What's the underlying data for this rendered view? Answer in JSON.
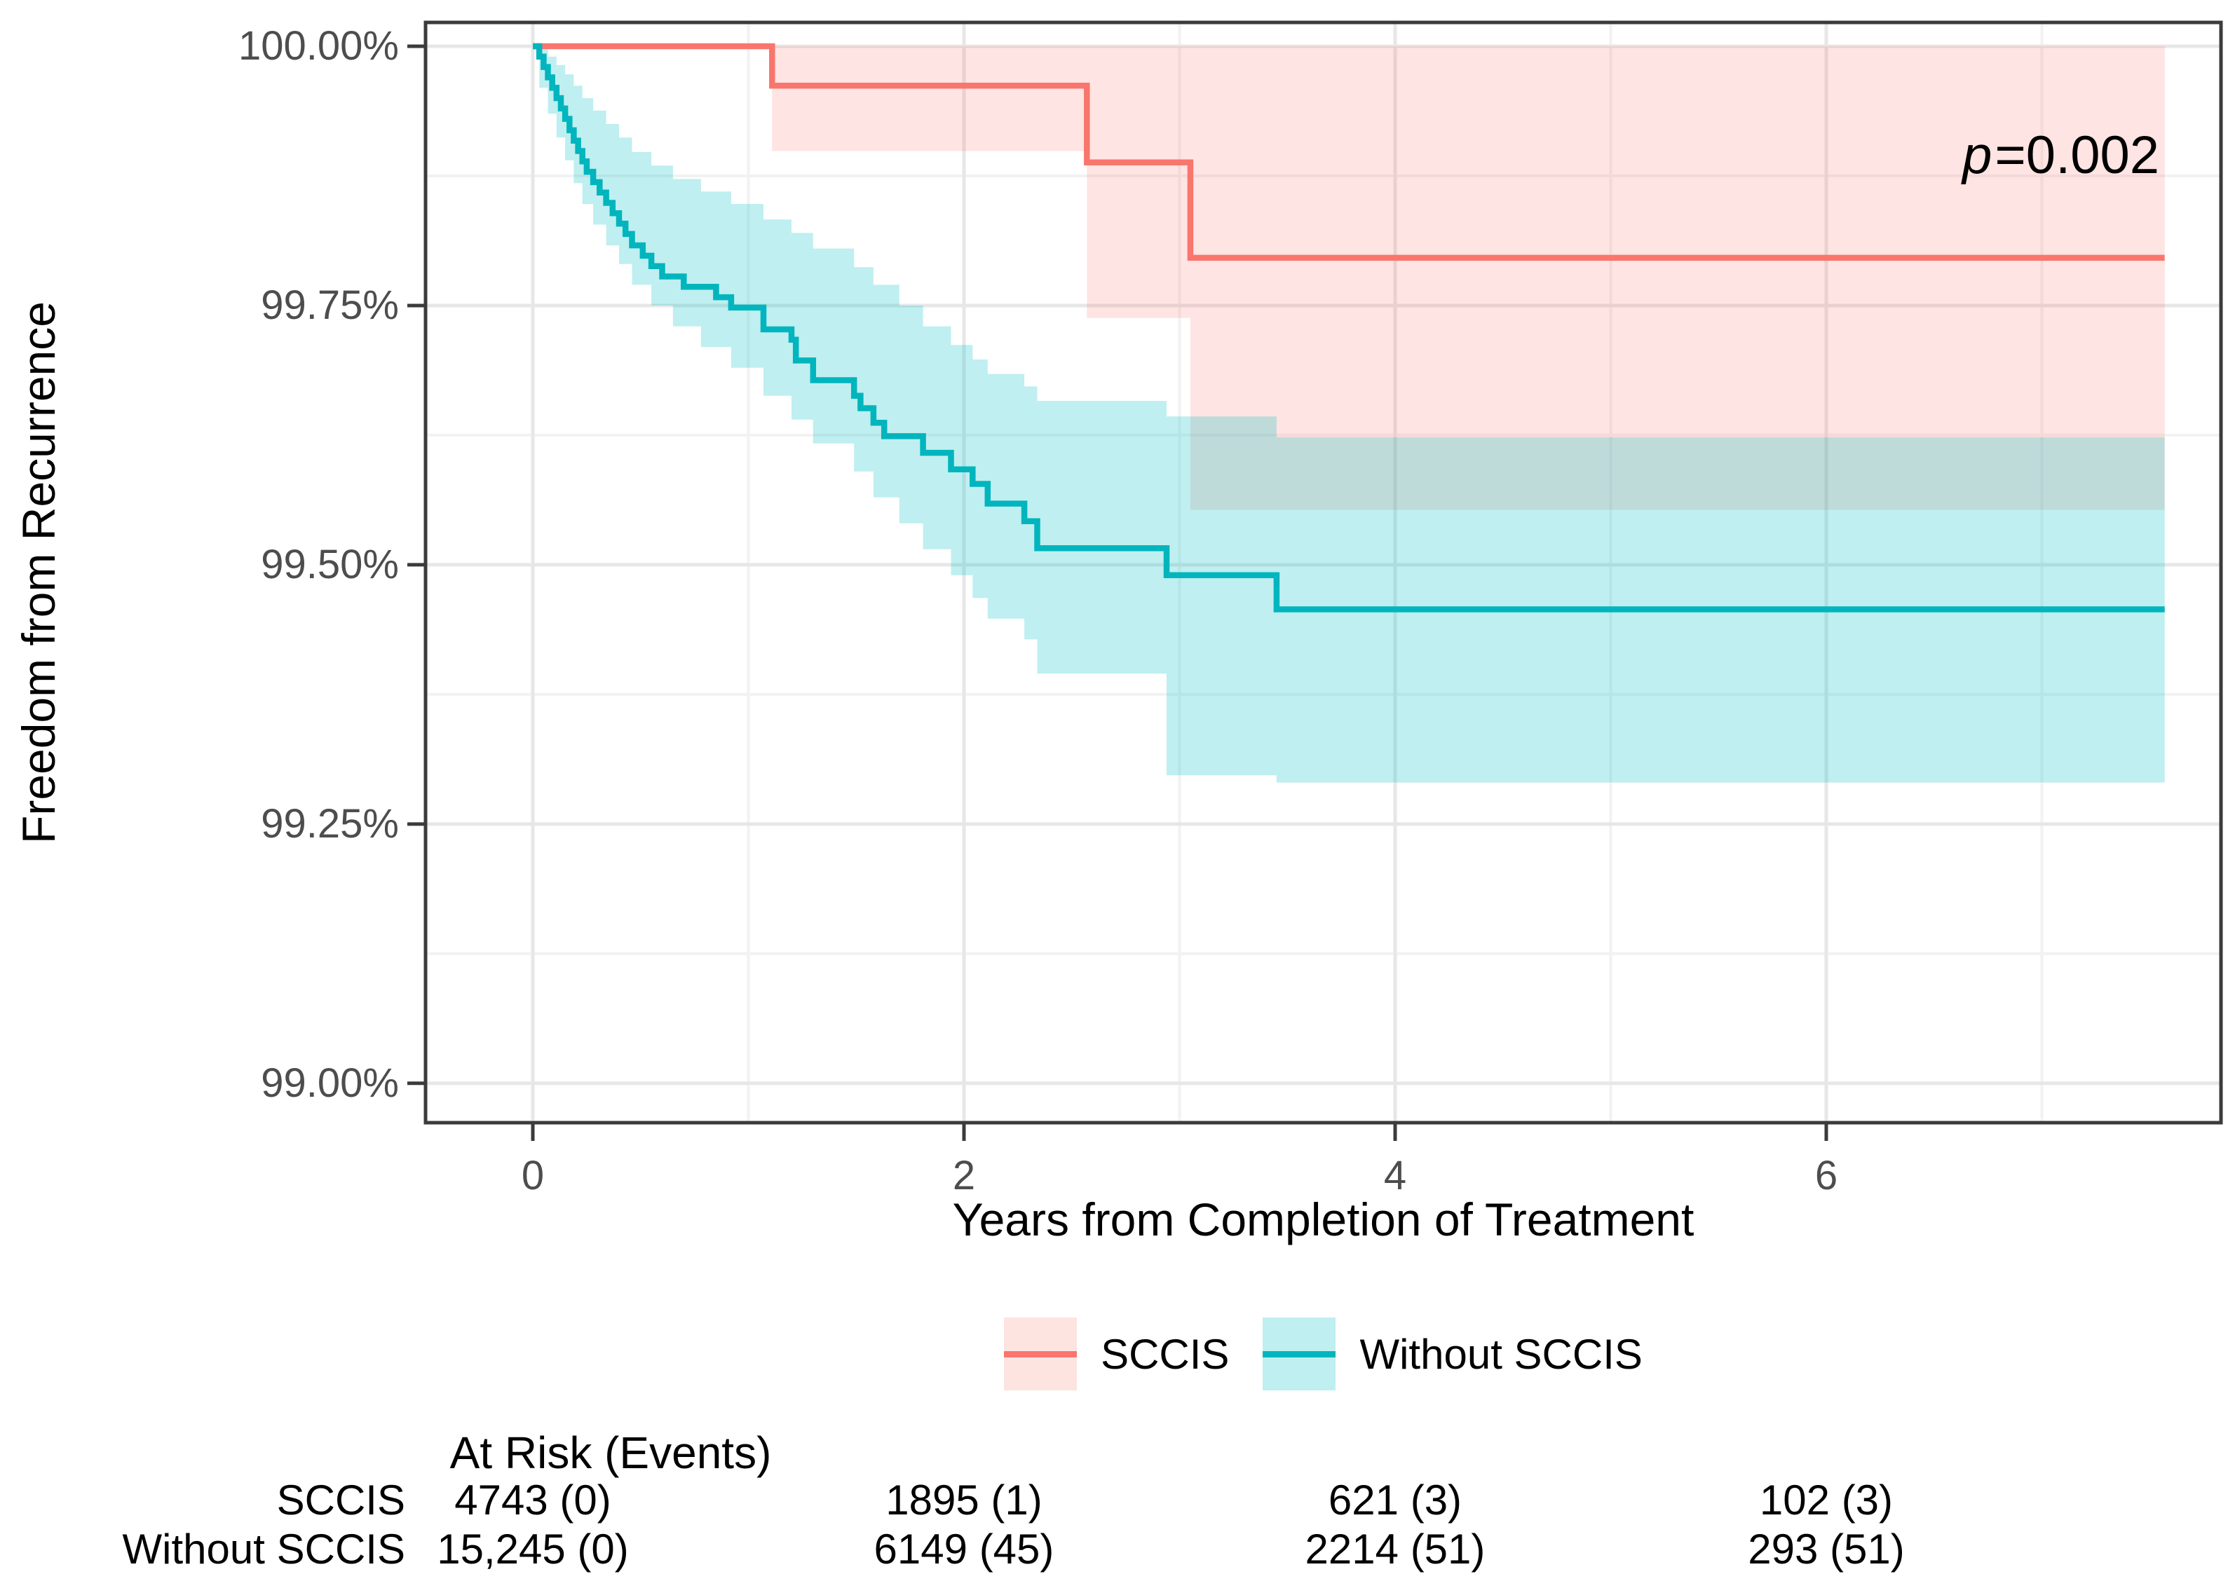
{
  "chart_data": {
    "type": "line",
    "subtype": "kaplan-meier-step-with-confidence-bands",
    "xlabel": "Years from Completion of Treatment",
    "ylabel": "Freedom from Recurrence",
    "annotation": {
      "italic": "p",
      "text": "=0.002"
    },
    "legend_position": "bottom",
    "grid": "on",
    "xlim": [
      -0.4976,
      7.831
    ],
    "ylim": [
      98.962,
      100.023
    ],
    "t_end": 7.57,
    "x_ticks": [
      {
        "t": 0,
        "label": "0"
      },
      {
        "t": 2,
        "label": "2"
      },
      {
        "t": 4,
        "label": "4"
      },
      {
        "t": 6,
        "label": "6"
      }
    ],
    "y_ticks": [
      {
        "v": 100.0,
        "label": "100.00%"
      },
      {
        "v": 99.75,
        "label": "99.75%"
      },
      {
        "v": 99.5,
        "label": "99.50%"
      },
      {
        "v": 99.25,
        "label": "99.25%"
      },
      {
        "v": 99.0,
        "label": "99.00%"
      }
    ],
    "x_minor": [
      1,
      3,
      5,
      7
    ],
    "y_minor": [
      99.875,
      99.625,
      99.375,
      99.125
    ],
    "colors": {
      "grid_major": "#E7E7E7",
      "grid_minor": "#F2F2F2",
      "axis": "#3B3B3B",
      "tick_text": "#4D4D4D"
    },
    "series": [
      {
        "name": "SCCIS",
        "color": "#F8766D",
        "fill": "rgba(248,118,109,0.2)",
        "legend_fill": "#FDE4E1",
        "ci_start": 1.11,
        "steps": [
          [
            0,
            100.0
          ],
          [
            1.11,
            99.962
          ],
          [
            2.57,
            99.888
          ],
          [
            3.05,
            99.796
          ]
        ],
        "ci_upper": [
          [
            1.11,
            100.0
          ]
        ],
        "ci_lower": [
          [
            1.11,
            99.899
          ],
          [
            2.57,
            99.738
          ],
          [
            3.05,
            99.553
          ]
        ]
      },
      {
        "name": "Without SCCIS",
        "color": "#00B5BD",
        "fill": "rgba(0,191,196,0.25)",
        "legend_fill": "#BFEFF0",
        "ci_start": 0.03,
        "steps": [
          [
            0,
            100.0
          ],
          [
            0.03,
            99.99
          ],
          [
            0.05,
            99.98
          ],
          [
            0.07,
            99.97
          ],
          [
            0.09,
            99.96
          ],
          [
            0.11,
            99.95
          ],
          [
            0.13,
            99.94
          ],
          [
            0.15,
            99.93
          ],
          [
            0.17,
            99.919
          ],
          [
            0.19,
            99.909
          ],
          [
            0.21,
            99.899
          ],
          [
            0.23,
            99.889
          ],
          [
            0.25,
            99.879
          ],
          [
            0.28,
            99.869
          ],
          [
            0.31,
            99.859
          ],
          [
            0.34,
            99.849
          ],
          [
            0.37,
            99.839
          ],
          [
            0.4,
            99.829
          ],
          [
            0.43,
            99.819
          ],
          [
            0.46,
            99.808
          ],
          [
            0.51,
            99.798
          ],
          [
            0.55,
            99.788
          ],
          [
            0.6,
            99.778
          ],
          [
            0.7,
            99.768
          ],
          [
            0.85,
            99.758
          ],
          [
            0.92,
            99.748
          ],
          [
            1.07,
            99.727
          ],
          [
            1.2,
            99.717
          ],
          [
            1.22,
            99.697
          ],
          [
            1.3,
            99.678
          ],
          [
            1.49,
            99.663
          ],
          [
            1.52,
            99.651
          ],
          [
            1.58,
            99.637
          ],
          [
            1.63,
            99.624
          ],
          [
            1.81,
            99.608
          ],
          [
            1.94,
            99.592
          ],
          [
            2.04,
            99.578
          ],
          [
            2.11,
            99.559
          ],
          [
            2.28,
            99.542
          ],
          [
            2.34,
            99.516
          ],
          [
            2.94,
            99.49
          ],
          [
            3.45,
            99.457
          ]
        ],
        "ci_upper": [
          [
            0.03,
            99.997
          ],
          [
            0.07,
            99.99
          ],
          [
            0.11,
            99.982
          ],
          [
            0.15,
            99.973
          ],
          [
            0.19,
            99.962
          ],
          [
            0.23,
            99.95
          ],
          [
            0.28,
            99.938
          ],
          [
            0.34,
            99.925
          ],
          [
            0.4,
            99.912
          ],
          [
            0.46,
            99.898
          ],
          [
            0.55,
            99.885
          ],
          [
            0.65,
            99.872
          ],
          [
            0.78,
            99.86
          ],
          [
            0.92,
            99.848
          ],
          [
            1.07,
            99.833
          ],
          [
            1.2,
            99.82
          ],
          [
            1.3,
            99.805
          ],
          [
            1.49,
            99.787
          ],
          [
            1.58,
            99.77
          ],
          [
            1.7,
            99.75
          ],
          [
            1.81,
            99.73
          ],
          [
            1.94,
            99.712
          ],
          [
            2.04,
            99.698
          ],
          [
            2.11,
            99.684
          ],
          [
            2.28,
            99.672
          ],
          [
            2.34,
            99.658
          ],
          [
            2.94,
            99.643
          ],
          [
            3.45,
            99.623
          ]
        ],
        "ci_lower": [
          [
            0.03,
            99.96
          ],
          [
            0.07,
            99.935
          ],
          [
            0.11,
            99.912
          ],
          [
            0.15,
            99.89
          ],
          [
            0.19,
            99.868
          ],
          [
            0.23,
            99.848
          ],
          [
            0.28,
            99.828
          ],
          [
            0.34,
            99.808
          ],
          [
            0.4,
            99.79
          ],
          [
            0.46,
            99.77
          ],
          [
            0.55,
            99.75
          ],
          [
            0.65,
            99.73
          ],
          [
            0.78,
            99.71
          ],
          [
            0.92,
            99.69
          ],
          [
            1.07,
            99.663
          ],
          [
            1.2,
            99.64
          ],
          [
            1.3,
            99.617
          ],
          [
            1.49,
            99.59
          ],
          [
            1.58,
            99.565
          ],
          [
            1.7,
            99.54
          ],
          [
            1.81,
            99.515
          ],
          [
            1.94,
            99.49
          ],
          [
            2.04,
            99.468
          ],
          [
            2.11,
            99.448
          ],
          [
            2.28,
            99.428
          ],
          [
            2.34,
            99.395
          ],
          [
            2.94,
            99.297
          ],
          [
            3.45,
            99.29
          ]
        ]
      }
    ],
    "risk_table": {
      "header": "At Risk (Events)",
      "time_columns": [
        0,
        2,
        4,
        6
      ],
      "rows": [
        {
          "label": "SCCIS",
          "values": [
            "4743 (0)",
            "1895 (1)",
            "621 (3)",
            "102 (3)"
          ]
        },
        {
          "label": "Without SCCIS",
          "values": [
            "15,245 (0)",
            "6149 (45)",
            "2214 (51)",
            "293 (51)"
          ]
        }
      ]
    }
  }
}
